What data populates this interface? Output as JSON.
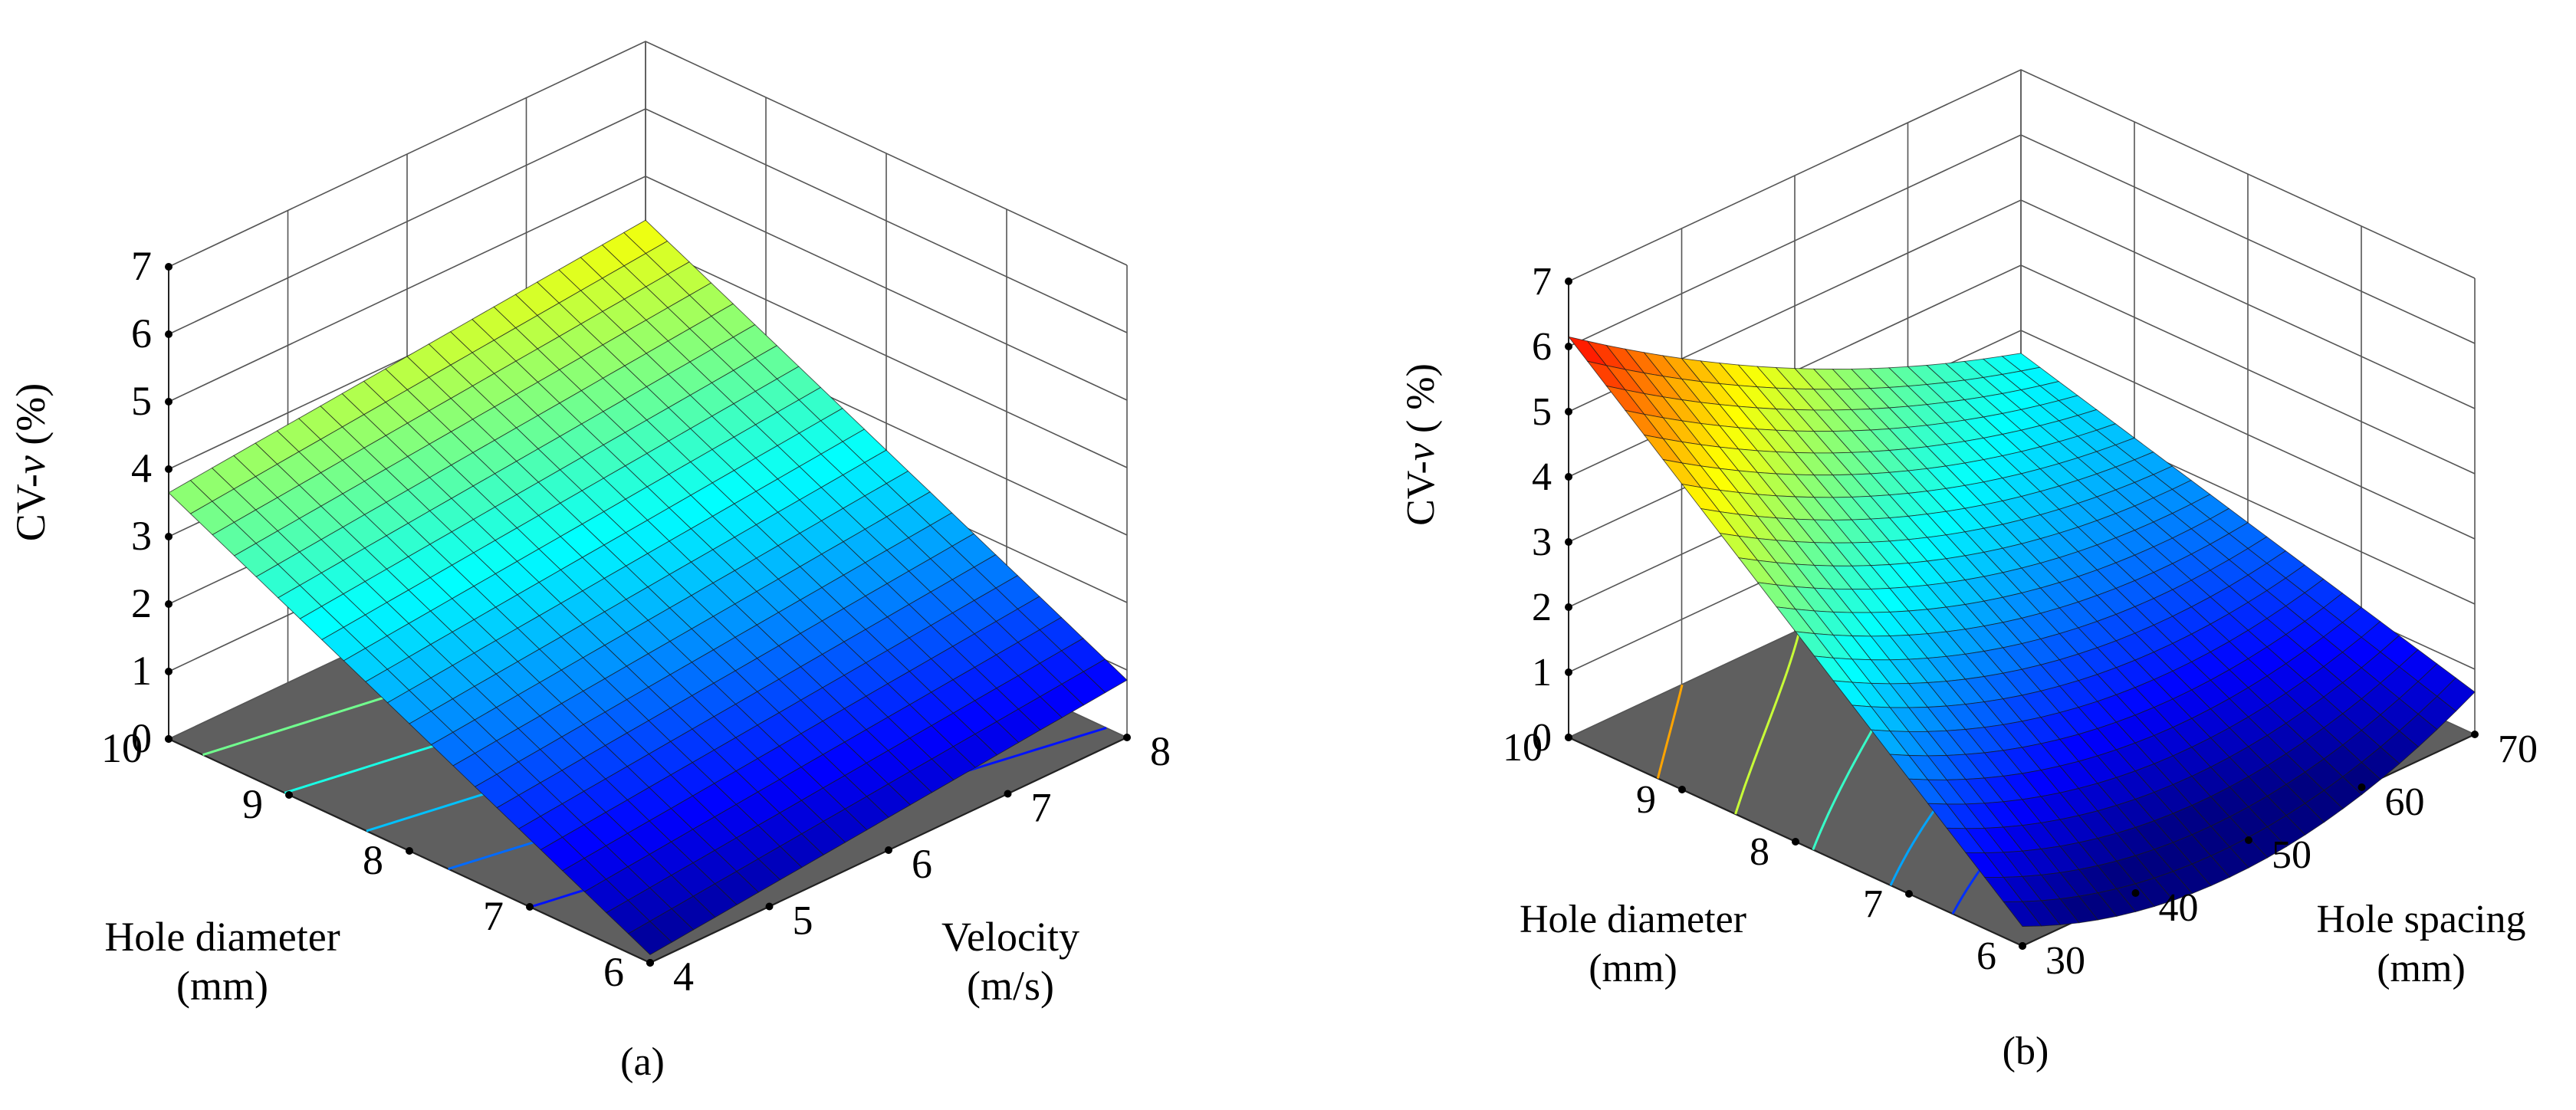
{
  "figure": {
    "caption_a": "(a)",
    "caption_b": "(b)"
  },
  "chart_data": [
    {
      "type": "surface3d",
      "panel": "(a)",
      "zlabel": "CV-v (%)",
      "zlabel_parts": {
        "prefix": "CV-",
        "italic": "v",
        "suffix": " (%)"
      },
      "zlim": [
        0,
        7
      ],
      "z_ticks": [
        "0",
        "1",
        "2",
        "3",
        "4",
        "5",
        "6",
        "7"
      ],
      "x_axis": {
        "label_lines": [
          "Hole diameter",
          "(mm)"
        ],
        "range": [
          6,
          10
        ],
        "ticks": [
          "6",
          "7",
          "8",
          "9",
          "10"
        ]
      },
      "y_axis": {
        "label_lines": [
          "Velocity",
          "(m/s)"
        ],
        "range": [
          4,
          8
        ],
        "ticks": [
          "4",
          "5",
          "6",
          "7",
          "8"
        ]
      },
      "surface_corners": [
        {
          "hole_diameter": 10,
          "velocity": 4,
          "cv": 3.65
        },
        {
          "hole_diameter": 10,
          "velocity": 8,
          "cv": 4.35
        },
        {
          "hole_diameter": 6,
          "velocity": 8,
          "cv": 0.85
        },
        {
          "hole_diameter": 6,
          "velocity": 4,
          "cv": 0.12
        }
      ],
      "colormap": "jet",
      "contours": "projected on floor"
    },
    {
      "type": "surface3d",
      "panel": "(b)",
      "zlabel": "CV-v ( %)",
      "zlabel_parts": {
        "prefix": "CV-",
        "italic": "v",
        "suffix": " ( %)"
      },
      "zlim": [
        0,
        7
      ],
      "z_ticks": [
        "0",
        "1",
        "2",
        "3",
        "4",
        "5",
        "6",
        "7"
      ],
      "x_axis": {
        "label_lines": [
          "Hole diameter",
          "(mm)"
        ],
        "range": [
          6,
          10
        ],
        "ticks": [
          "6",
          "7",
          "8",
          "9",
          "10"
        ]
      },
      "y_axis": {
        "label_lines": [
          "Hole spacing",
          "(mm)"
        ],
        "range": [
          30,
          70
        ],
        "ticks": [
          "30",
          "40",
          "50",
          "60",
          "70"
        ]
      },
      "surface_corners": [
        {
          "hole_diameter": 10,
          "hole_spacing": 30,
          "cv": 6.15
        },
        {
          "hole_diameter": 10,
          "hole_spacing": 70,
          "cv": 2.65
        },
        {
          "hole_diameter": 6,
          "hole_spacing": 70,
          "cv": 0.65
        },
        {
          "hole_diameter": 6,
          "hole_spacing": 30,
          "cv": 0.3
        }
      ],
      "colormap": "jet",
      "contours": "projected on floor"
    }
  ]
}
